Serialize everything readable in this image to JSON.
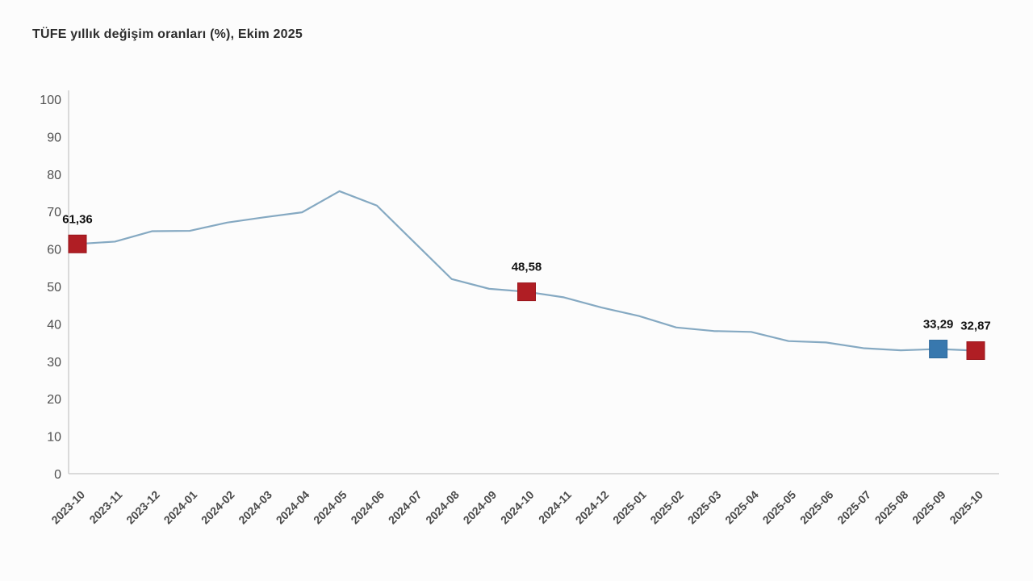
{
  "title": "TÜFE yıllık değişim oranları (%), Ekim 2025",
  "colors": {
    "line": "#85a9c2",
    "marker_red": "#b01e24",
    "marker_red_border": "#9a161c",
    "marker_blue": "#3878ae",
    "marker_blue_border": "#2e699c",
    "axis": "#cfcfcf",
    "tick_text": "#4f4f4f",
    "data_label_text": "#121212"
  },
  "chart_data": {
    "type": "line",
    "title": "TÜFE yıllık değişim oranları (%), Ekim 2025",
    "xlabel": "",
    "ylabel": "",
    "ylim": [
      0,
      100
    ],
    "yticks": [
      0,
      10,
      20,
      30,
      40,
      50,
      60,
      70,
      80,
      90,
      100
    ],
    "grid": false,
    "legend": null,
    "x": [
      "2023-10",
      "2023-11",
      "2023-12",
      "2024-01",
      "2024-02",
      "2024-03",
      "2024-04",
      "2024-05",
      "2024-06",
      "2024-07",
      "2024-08",
      "2024-09",
      "2024-10",
      "2024-11",
      "2024-12",
      "2025-01",
      "2025-02",
      "2025-03",
      "2025-04",
      "2025-05",
      "2025-06",
      "2025-07",
      "2025-08",
      "2025-09",
      "2025-10"
    ],
    "values": [
      61.36,
      61.98,
      64.77,
      64.86,
      67.07,
      68.5,
      69.8,
      75.45,
      71.6,
      61.78,
      51.97,
      49.38,
      48.58,
      47.09,
      44.38,
      42.12,
      39.05,
      38.1,
      37.86,
      35.41,
      35.05,
      33.52,
      32.95,
      33.29,
      32.87
    ],
    "highlighted_points": [
      {
        "x": "2023-10",
        "value": 61.36,
        "label": "61,36",
        "color": "red"
      },
      {
        "x": "2024-10",
        "value": 48.58,
        "label": "48,58",
        "color": "red"
      },
      {
        "x": "2025-09",
        "value": 33.29,
        "label": "33,29",
        "color": "blue"
      },
      {
        "x": "2025-10",
        "value": 32.87,
        "label": "32,87",
        "color": "red"
      }
    ]
  }
}
